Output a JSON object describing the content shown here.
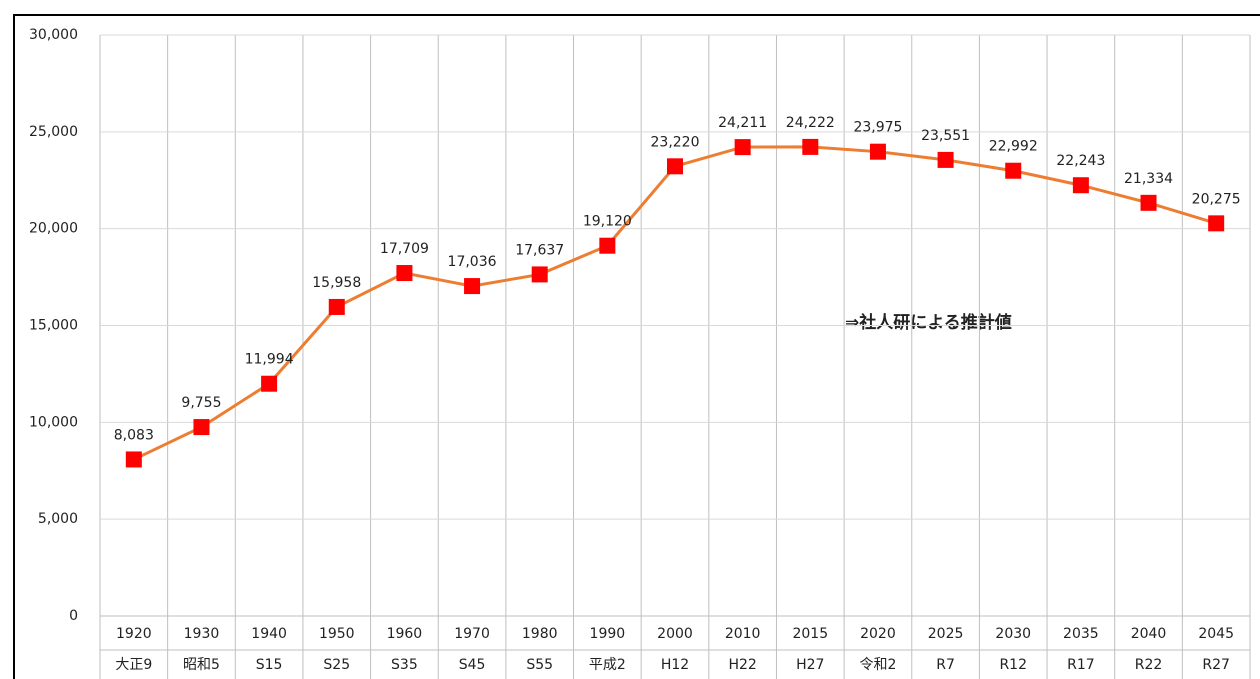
{
  "chart_data": {
    "type": "line",
    "categories": [
      "1920",
      "1930",
      "1940",
      "1950",
      "1960",
      "1970",
      "1980",
      "1990",
      "2000",
      "2010",
      "2015",
      "2020",
      "2025",
      "2030",
      "2035",
      "2040",
      "2045"
    ],
    "era_labels": [
      "大正9",
      "昭和5",
      "S15",
      "S25",
      "S35",
      "S45",
      "S55",
      "平成2",
      "H12",
      "H22",
      "H27",
      "令和2",
      "R7",
      "R12",
      "R17",
      "R22",
      "R27"
    ],
    "series": [
      {
        "color": "#ed7d31",
        "marker_color": "#ff0000",
        "values": [
          8083,
          9755,
          11994,
          15958,
          17709,
          17036,
          17637,
          19120,
          23220,
          24211,
          24222,
          23975,
          23551,
          22992,
          22243,
          21334,
          20275
        ],
        "value_labels": [
          "8,083",
          "9,755",
          "11,994",
          "15,958",
          "17,709",
          "17,036",
          "17,637",
          "19,120",
          "23,220",
          "24,211",
          "24,222",
          "23,975",
          "23,551",
          "22,992",
          "22,243",
          "21,334",
          "20,275"
        ]
      }
    ],
    "ylim": [
      0,
      30000
    ],
    "yticks": [
      0,
      {
        "value": 5000,
        "label": "5,000"
      },
      {
        "value": 10000,
        "label": "10,000"
      },
      {
        "value": 15000,
        "label": "15,000"
      },
      {
        "value": 20000,
        "label": "20,000"
      },
      {
        "value": 25000,
        "label": "25,000"
      },
      {
        "value": 30000,
        "label": "30,000"
      }
    ],
    "grid": true,
    "annotation": "⇒社人研による推計値"
  }
}
